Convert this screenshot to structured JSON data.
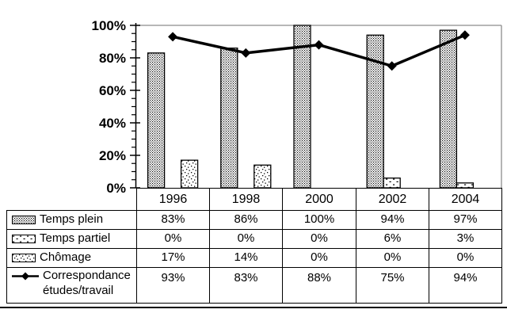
{
  "chart_data": {
    "type": "combo-bar-line",
    "title": "",
    "categories": [
      "1996",
      "1998",
      "2000",
      "2002",
      "2004"
    ],
    "series": [
      {
        "name": "Temps plein",
        "chart_type": "bar",
        "pattern": "dense-dots",
        "values": [
          83,
          86,
          100,
          94,
          97
        ],
        "labels": [
          "83%",
          "86%",
          "100%",
          "94%",
          "97%"
        ]
      },
      {
        "name": "Temps partiel",
        "chart_type": "bar",
        "pattern": "sparse-dash",
        "values": [
          0,
          0,
          0,
          6,
          3
        ],
        "labels": [
          "0%",
          "0%",
          "0%",
          "6%",
          "3%"
        ]
      },
      {
        "name": "Chômage",
        "chart_type": "bar",
        "pattern": "speckle",
        "values": [
          17,
          14,
          0,
          0,
          0
        ],
        "labels": [
          "17%",
          "14%",
          "0%",
          "0%",
          "0%"
        ]
      },
      {
        "name": "Correspondance études/travail",
        "chart_type": "line",
        "marker": "diamond",
        "values": [
          93,
          83,
          88,
          75,
          94
        ],
        "labels": [
          "93%",
          "83%",
          "88%",
          "75%",
          "94%"
        ]
      }
    ],
    "y_axis": {
      "min": 0,
      "max": 100,
      "major_tick_step": 20,
      "minor_tick_step": 5,
      "labels": [
        "0%",
        "20%",
        "40%",
        "60%",
        "80%",
        "100%"
      ],
      "label_suffix": "%"
    },
    "x_axis": {
      "labels": [
        "1996",
        "1998",
        "2000",
        "2002",
        "2004"
      ]
    },
    "ylim": [
      0,
      100
    ],
    "grid": "top-line-only",
    "legend_position": "left-column-of-data-table"
  },
  "colors": {
    "background": "#ffffff",
    "bar_stroke": "#000000",
    "line": "#000000",
    "marker": "#000000",
    "plot_border": "#8c8c8c",
    "table_border": "#000000",
    "text": "#000000"
  }
}
